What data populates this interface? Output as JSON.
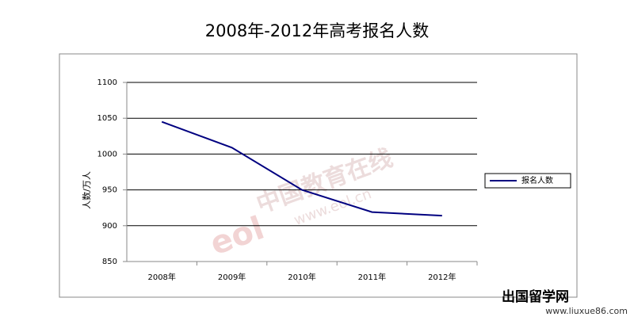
{
  "chart_data": {
    "type": "line",
    "title": "2008年-2012年高考报名人数",
    "y_label": "人数/万人",
    "categories": [
      "2008年",
      "2009年",
      "2010年",
      "2011年",
      "2012年"
    ],
    "series": [
      {
        "name": "报名人数",
        "color": "#000080",
        "values": [
          1045,
          1009,
          950,
          919,
          914
        ]
      }
    ],
    "ylim": [
      850,
      1100
    ],
    "yticks": [
      850,
      900,
      950,
      1000,
      1050,
      1100
    ],
    "grid": true,
    "legend": "right"
  },
  "watermarks": [
    "中国教育在线",
    "www.eol.cn",
    "出国留学网",
    "www.liuxue86.com"
  ]
}
